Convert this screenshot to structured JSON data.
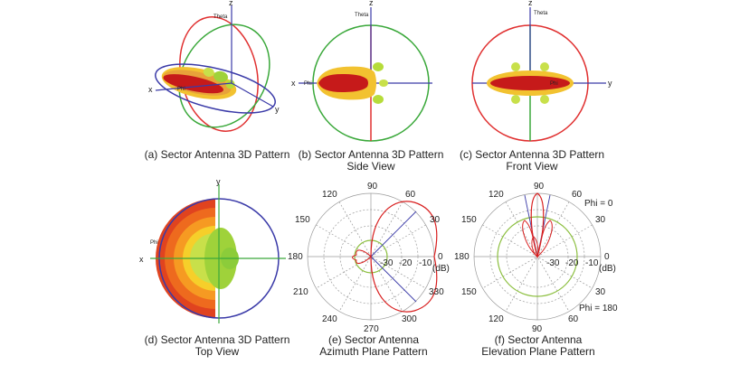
{
  "figures": [
    {
      "caption_lines": [
        "(a) Sector Antenna 3D Pattern"
      ],
      "axis_labels": {
        "x": "x",
        "y": "y",
        "z": "z",
        "theta": "Theta",
        "phi": "Phi"
      }
    },
    {
      "caption_lines": [
        "(b) Sector Antenna 3D Pattern",
        "Side View"
      ],
      "axis_labels": {
        "x": "x",
        "z": "z",
        "theta": "Theta",
        "phi": "Phi"
      }
    },
    {
      "caption_lines": [
        "(c) Sector Antenna 3D Pattern",
        "Front View"
      ],
      "axis_labels": {
        "y": "y",
        "z": "z",
        "theta": "Theta",
        "phi": "Phi"
      }
    },
    {
      "caption_lines": [
        "(d) Sector Antenna 3D Pattern",
        "Top View"
      ],
      "axis_labels": {
        "x": "x",
        "y": "y",
        "phi": "Phi"
      }
    },
    {
      "caption_lines": [
        "(e) Sector Antenna",
        "Azimuth Plane Pattern"
      ],
      "angle_labels": [
        "90",
        "60",
        "30",
        "0",
        "330",
        "300",
        "270",
        "240",
        "210",
        "180",
        "150",
        "120"
      ],
      "radial_labels": [
        "-30",
        "-20",
        "-10"
      ],
      "unit": "(dB)"
    },
    {
      "caption_lines": [
        "(f) Sector Antenna",
        "Elevation Plane Pattern"
      ],
      "angle_labels": [
        "90",
        "60",
        "30",
        "0",
        "30",
        "60",
        "90",
        "120",
        "150",
        "180",
        "150",
        "120"
      ],
      "radial_labels": [
        "-30",
        "-20",
        "-10"
      ],
      "unit": "(dB)",
      "phi_labels": [
        "Phi = 0",
        "Phi = 180"
      ]
    }
  ],
  "colors": {
    "red": "#e03030",
    "green": "#3aa83a",
    "blue": "#3a3aa8",
    "pattern_red": "#d81e1e",
    "grid": "#9a9a9a",
    "inner_green": "#8cbf3f"
  }
}
